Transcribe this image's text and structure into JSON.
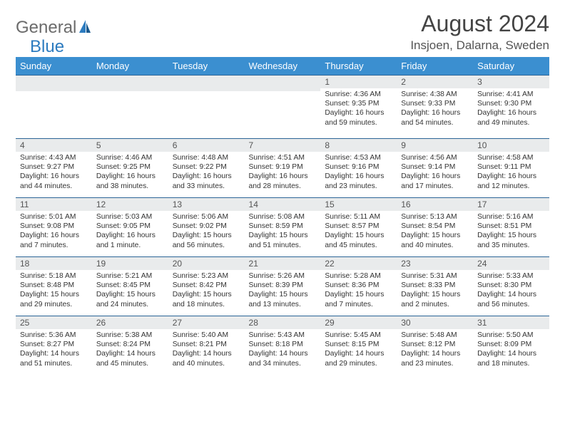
{
  "logo": {
    "text1": "General",
    "text2": "Blue"
  },
  "title": "August 2024",
  "location": "Insjoen, Dalarna, Sweden",
  "colors": {
    "header_bg": "#3b8fd0",
    "header_text": "#ffffff",
    "daynum_bg": "#e9ebec",
    "row_border": "#2b6597",
    "logo_gray": "#6b6b6b",
    "logo_blue": "#2c7bbf",
    "body_text": "#333333"
  },
  "dayNames": [
    "Sunday",
    "Monday",
    "Tuesday",
    "Wednesday",
    "Thursday",
    "Friday",
    "Saturday"
  ],
  "weeks": [
    [
      null,
      null,
      null,
      null,
      {
        "d": "1",
        "sr": "4:36 AM",
        "ss": "9:35 PM",
        "dl": "16 hours and 59 minutes."
      },
      {
        "d": "2",
        "sr": "4:38 AM",
        "ss": "9:33 PM",
        "dl": "16 hours and 54 minutes."
      },
      {
        "d": "3",
        "sr": "4:41 AM",
        "ss": "9:30 PM",
        "dl": "16 hours and 49 minutes."
      }
    ],
    [
      {
        "d": "4",
        "sr": "4:43 AM",
        "ss": "9:27 PM",
        "dl": "16 hours and 44 minutes."
      },
      {
        "d": "5",
        "sr": "4:46 AM",
        "ss": "9:25 PM",
        "dl": "16 hours and 38 minutes."
      },
      {
        "d": "6",
        "sr": "4:48 AM",
        "ss": "9:22 PM",
        "dl": "16 hours and 33 minutes."
      },
      {
        "d": "7",
        "sr": "4:51 AM",
        "ss": "9:19 PM",
        "dl": "16 hours and 28 minutes."
      },
      {
        "d": "8",
        "sr": "4:53 AM",
        "ss": "9:16 PM",
        "dl": "16 hours and 23 minutes."
      },
      {
        "d": "9",
        "sr": "4:56 AM",
        "ss": "9:14 PM",
        "dl": "16 hours and 17 minutes."
      },
      {
        "d": "10",
        "sr": "4:58 AM",
        "ss": "9:11 PM",
        "dl": "16 hours and 12 minutes."
      }
    ],
    [
      {
        "d": "11",
        "sr": "5:01 AM",
        "ss": "9:08 PM",
        "dl": "16 hours and 7 minutes."
      },
      {
        "d": "12",
        "sr": "5:03 AM",
        "ss": "9:05 PM",
        "dl": "16 hours and 1 minute."
      },
      {
        "d": "13",
        "sr": "5:06 AM",
        "ss": "9:02 PM",
        "dl": "15 hours and 56 minutes."
      },
      {
        "d": "14",
        "sr": "5:08 AM",
        "ss": "8:59 PM",
        "dl": "15 hours and 51 minutes."
      },
      {
        "d": "15",
        "sr": "5:11 AM",
        "ss": "8:57 PM",
        "dl": "15 hours and 45 minutes."
      },
      {
        "d": "16",
        "sr": "5:13 AM",
        "ss": "8:54 PM",
        "dl": "15 hours and 40 minutes."
      },
      {
        "d": "17",
        "sr": "5:16 AM",
        "ss": "8:51 PM",
        "dl": "15 hours and 35 minutes."
      }
    ],
    [
      {
        "d": "18",
        "sr": "5:18 AM",
        "ss": "8:48 PM",
        "dl": "15 hours and 29 minutes."
      },
      {
        "d": "19",
        "sr": "5:21 AM",
        "ss": "8:45 PM",
        "dl": "15 hours and 24 minutes."
      },
      {
        "d": "20",
        "sr": "5:23 AM",
        "ss": "8:42 PM",
        "dl": "15 hours and 18 minutes."
      },
      {
        "d": "21",
        "sr": "5:26 AM",
        "ss": "8:39 PM",
        "dl": "15 hours and 13 minutes."
      },
      {
        "d": "22",
        "sr": "5:28 AM",
        "ss": "8:36 PM",
        "dl": "15 hours and 7 minutes."
      },
      {
        "d": "23",
        "sr": "5:31 AM",
        "ss": "8:33 PM",
        "dl": "15 hours and 2 minutes."
      },
      {
        "d": "24",
        "sr": "5:33 AM",
        "ss": "8:30 PM",
        "dl": "14 hours and 56 minutes."
      }
    ],
    [
      {
        "d": "25",
        "sr": "5:36 AM",
        "ss": "8:27 PM",
        "dl": "14 hours and 51 minutes."
      },
      {
        "d": "26",
        "sr": "5:38 AM",
        "ss": "8:24 PM",
        "dl": "14 hours and 45 minutes."
      },
      {
        "d": "27",
        "sr": "5:40 AM",
        "ss": "8:21 PM",
        "dl": "14 hours and 40 minutes."
      },
      {
        "d": "28",
        "sr": "5:43 AM",
        "ss": "8:18 PM",
        "dl": "14 hours and 34 minutes."
      },
      {
        "d": "29",
        "sr": "5:45 AM",
        "ss": "8:15 PM",
        "dl": "14 hours and 29 minutes."
      },
      {
        "d": "30",
        "sr": "5:48 AM",
        "ss": "8:12 PM",
        "dl": "14 hours and 23 minutes."
      },
      {
        "d": "31",
        "sr": "5:50 AM",
        "ss": "8:09 PM",
        "dl": "14 hours and 18 minutes."
      }
    ]
  ],
  "labels": {
    "sunrise": "Sunrise: ",
    "sunset": "Sunset: ",
    "daylight": "Daylight: "
  }
}
